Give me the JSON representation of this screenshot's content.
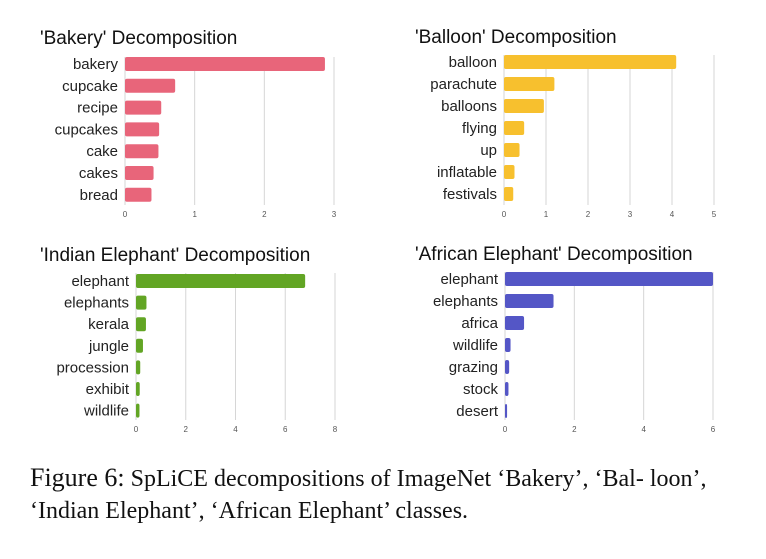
{
  "chart_data": [
    {
      "type": "bar",
      "orientation": "horizontal",
      "title": "'Bakery' Decomposition",
      "categories": [
        "bakery",
        "cupcake",
        "recipe",
        "cupcakes",
        "cake",
        "cakes",
        "bread"
      ],
      "values": [
        2.87,
        0.72,
        0.52,
        0.49,
        0.48,
        0.41,
        0.38
      ],
      "xlim": [
        0,
        3
      ],
      "ticks": [
        0,
        1,
        2,
        3
      ],
      "color": "#e8657a",
      "grid": true
    },
    {
      "type": "bar",
      "orientation": "horizontal",
      "title": "'Balloon' Decomposition",
      "categories": [
        "balloon",
        "parachute",
        "balloons",
        "flying",
        "up",
        "inflatable",
        "festivals"
      ],
      "values": [
        4.1,
        1.2,
        0.95,
        0.48,
        0.37,
        0.25,
        0.22
      ],
      "xlim": [
        0,
        5
      ],
      "ticks": [
        0,
        1,
        2,
        3,
        4,
        5
      ],
      "color": "#f7c02e",
      "grid": true
    },
    {
      "type": "bar",
      "orientation": "horizontal",
      "title": "'Indian Elephant' Decomposition",
      "categories": [
        "elephant",
        "elephants",
        "kerala",
        "jungle",
        "procession",
        "exhibit",
        "wildlife"
      ],
      "values": [
        6.8,
        0.42,
        0.4,
        0.28,
        0.17,
        0.15,
        0.14
      ],
      "xlim": [
        0,
        8
      ],
      "ticks": [
        0,
        2,
        4,
        6,
        8
      ],
      "color": "#62a524",
      "grid": true
    },
    {
      "type": "bar",
      "orientation": "horizontal",
      "title": "'African Elephant' Decomposition",
      "categories": [
        "elephant",
        "elephants",
        "africa",
        "wildlife",
        "grazing",
        "stock",
        "desert"
      ],
      "values": [
        6.0,
        1.4,
        0.55,
        0.16,
        0.12,
        0.1,
        0.06
      ],
      "xlim": [
        0,
        6
      ],
      "ticks": [
        0,
        2,
        4,
        6
      ],
      "color": "#5456c6",
      "grid": true
    }
  ],
  "caption": {
    "label": "Figure 6:",
    "text": "SpLiCE decompositions of ImageNet ‘Bakery’, ‘Bal- loon’, ‘Indian Elephant’, ‘African Elephant’ classes."
  }
}
